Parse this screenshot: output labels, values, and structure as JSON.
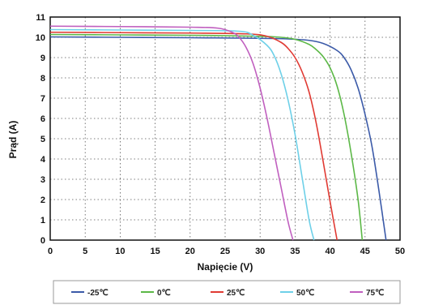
{
  "chart_data": {
    "type": "line",
    "xlabel": "Napięcie (V)",
    "ylabel": "Prąd (A)",
    "xlim": [
      0,
      50
    ],
    "ylim": [
      0,
      11
    ],
    "xticks": [
      0,
      5,
      10,
      15,
      20,
      25,
      30,
      35,
      40,
      45,
      50
    ],
    "yticks": [
      0,
      1,
      2,
      3,
      4,
      5,
      6,
      7,
      8,
      9,
      10,
      11
    ],
    "grid": true,
    "legend_position": "bottom",
    "series": [
      {
        "name": "-25℃",
        "color": "#3b5aa8",
        "x": [
          0,
          10,
          20,
          30,
          34,
          37,
          39,
          41,
          42,
          43,
          44,
          45,
          46,
          47,
          48
        ],
        "y": [
          10.02,
          10.0,
          9.98,
          9.95,
          9.92,
          9.85,
          9.7,
          9.35,
          9.0,
          8.4,
          7.5,
          6.2,
          4.6,
          2.4,
          0
        ]
      },
      {
        "name": "0℃",
        "color": "#5cb847",
        "x": [
          0,
          10,
          20,
          30,
          33,
          35,
          37,
          38,
          39,
          40,
          41,
          42,
          43,
          44,
          44.6
        ],
        "y": [
          10.14,
          10.12,
          10.1,
          10.05,
          10.0,
          9.9,
          9.65,
          9.4,
          9.05,
          8.5,
          7.6,
          6.2,
          4.3,
          2.0,
          0
        ]
      },
      {
        "name": "25℃",
        "color": "#e03a33",
        "x": [
          0,
          10,
          20,
          28,
          31,
          33,
          34,
          35,
          36,
          37,
          38,
          39,
          40,
          41
        ],
        "y": [
          10.25,
          10.23,
          10.21,
          10.17,
          10.05,
          9.75,
          9.45,
          9.0,
          8.3,
          7.3,
          5.8,
          3.9,
          1.9,
          0
        ]
      },
      {
        "name": "50℃",
        "color": "#6ed0e8",
        "x": [
          0,
          10,
          20,
          27,
          29,
          31,
          32,
          33,
          34,
          35,
          36,
          37,
          37.7
        ],
        "y": [
          10.38,
          10.36,
          10.34,
          10.3,
          10.1,
          9.6,
          9.1,
          8.2,
          6.9,
          5.2,
          3.1,
          1.0,
          0
        ]
      },
      {
        "name": "75℃",
        "color": "#c05fbf",
        "x": [
          0,
          10,
          20,
          24,
          26,
          27,
          28,
          29,
          30,
          31,
          32,
          33,
          34,
          34.7
        ],
        "y": [
          10.55,
          10.53,
          10.5,
          10.45,
          10.25,
          10.0,
          9.5,
          8.7,
          7.5,
          6.0,
          4.3,
          2.6,
          0.9,
          0
        ]
      }
    ]
  }
}
